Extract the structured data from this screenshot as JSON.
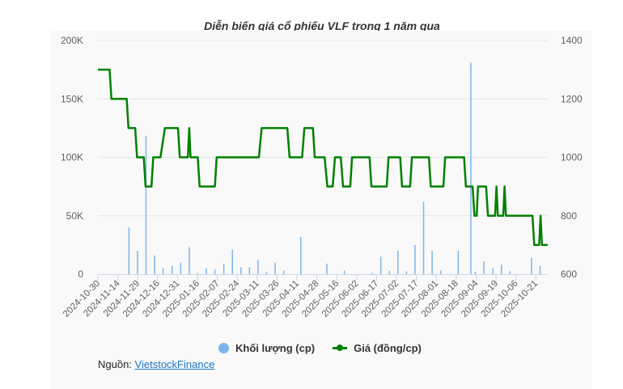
{
  "title": "Diễn biến giá cổ phiếu VLF trong 1 năm qua",
  "legend": {
    "volume_label": "Khối lượng (cp)",
    "price_label": "Giá (đồng/cp)"
  },
  "source": {
    "prefix": "Nguồn:",
    "link_text": "VietstockFinance"
  },
  "colors": {
    "volume": "#7cb5ec",
    "price": "#008000",
    "grid": "#e6e6e6",
    "panel_bg": "#f9f9f9"
  },
  "chart_data": {
    "type": "bar+line",
    "title": "Diễn biến giá cổ phiếu VLF trong 1 năm qua",
    "left_axis": {
      "label": "Khối lượng (cp)",
      "range": [
        0,
        200000
      ],
      "ticks": [
        "0",
        "50K",
        "100K",
        "150K",
        "200K"
      ]
    },
    "right_axis": {
      "label": "Giá (đồng/cp)",
      "range": [
        600,
        1400
      ],
      "ticks": [
        "600",
        "800",
        "1000",
        "1200",
        "1400"
      ]
    },
    "x_tick_labels": [
      "2024-10-30",
      "2024-11-14",
      "2024-11-29",
      "2024-12-16",
      "2024-12-31",
      "2025-01-16",
      "2025-02-07",
      "2025-02-24",
      "2025-03-11",
      "2025-03-26",
      "2025-04-11",
      "2025-04-28",
      "2025-05-16",
      "2025-06-02",
      "2025-06-17",
      "2025-07-02",
      "2025-07-17",
      "2025-08-01",
      "2025-08-18",
      "2025-09-04",
      "2025-09-19",
      "2025-10-06",
      "2025-10-21"
    ],
    "grid": true,
    "legend_position": "bottom",
    "series": [
      {
        "name": "Giá (đồng/cp)",
        "type": "line",
        "points_xfrac_price": [
          [
            0.0,
            1300
          ],
          [
            0.026,
            1300
          ],
          [
            0.03,
            1200
          ],
          [
            0.064,
            1200
          ],
          [
            0.068,
            1100
          ],
          [
            0.083,
            1100
          ],
          [
            0.087,
            1000
          ],
          [
            0.102,
            1000
          ],
          [
            0.106,
            900
          ],
          [
            0.119,
            900
          ],
          [
            0.123,
            1000
          ],
          [
            0.139,
            1000
          ],
          [
            0.149,
            1100
          ],
          [
            0.178,
            1100
          ],
          [
            0.182,
            1000
          ],
          [
            0.2,
            1000
          ],
          [
            0.203,
            1100
          ],
          [
            0.206,
            1000
          ],
          [
            0.222,
            1000
          ],
          [
            0.226,
            900
          ],
          [
            0.26,
            900
          ],
          [
            0.264,
            1000
          ],
          [
            0.358,
            1000
          ],
          [
            0.364,
            1100
          ],
          [
            0.421,
            1100
          ],
          [
            0.426,
            1000
          ],
          [
            0.454,
            1000
          ],
          [
            0.459,
            1100
          ],
          [
            0.478,
            1100
          ],
          [
            0.482,
            1000
          ],
          [
            0.504,
            1000
          ],
          [
            0.51,
            900
          ],
          [
            0.522,
            900
          ],
          [
            0.527,
            1000
          ],
          [
            0.54,
            1000
          ],
          [
            0.545,
            900
          ],
          [
            0.561,
            900
          ],
          [
            0.565,
            1000
          ],
          [
            0.604,
            1000
          ],
          [
            0.608,
            900
          ],
          [
            0.642,
            900
          ],
          [
            0.646,
            1000
          ],
          [
            0.672,
            1000
          ],
          [
            0.676,
            900
          ],
          [
            0.694,
            900
          ],
          [
            0.698,
            1000
          ],
          [
            0.736,
            1000
          ],
          [
            0.74,
            900
          ],
          [
            0.768,
            900
          ],
          [
            0.772,
            1000
          ],
          [
            0.814,
            1000
          ],
          [
            0.818,
            900
          ],
          [
            0.833,
            900
          ],
          [
            0.837,
            800
          ],
          [
            0.842,
            800
          ],
          [
            0.845,
            900
          ],
          [
            0.863,
            900
          ],
          [
            0.867,
            800
          ],
          [
            0.883,
            800
          ],
          [
            0.886,
            900
          ],
          [
            0.889,
            800
          ],
          [
            0.901,
            800
          ],
          [
            0.904,
            900
          ],
          [
            0.907,
            800
          ],
          [
            0.966,
            800
          ],
          [
            0.97,
            700
          ],
          [
            0.981,
            700
          ],
          [
            0.984,
            800
          ],
          [
            0.987,
            700
          ],
          [
            1.0,
            700
          ]
        ]
      },
      {
        "name": "Khối lượng (cp)",
        "type": "bar",
        "bars_xfrac_volume": [
          [
            0.069,
            40000
          ],
          [
            0.088,
            20000
          ],
          [
            0.107,
            118000
          ],
          [
            0.126,
            16000
          ],
          [
            0.145,
            5000
          ],
          [
            0.165,
            7000
          ],
          [
            0.184,
            10000
          ],
          [
            0.203,
            23000
          ],
          [
            0.222,
            1000
          ],
          [
            0.241,
            5000
          ],
          [
            0.26,
            4000
          ],
          [
            0.28,
            9000
          ],
          [
            0.299,
            21000
          ],
          [
            0.318,
            6000
          ],
          [
            0.337,
            6000
          ],
          [
            0.356,
            12000
          ],
          [
            0.375,
            2000
          ],
          [
            0.394,
            10000
          ],
          [
            0.413,
            3000
          ],
          [
            0.451,
            32000
          ],
          [
            0.509,
            9000
          ],
          [
            0.548,
            3000
          ],
          [
            0.61,
            1000
          ],
          [
            0.629,
            15000
          ],
          [
            0.648,
            3000
          ],
          [
            0.667,
            20000
          ],
          [
            0.686,
            2500
          ],
          [
            0.705,
            25000
          ],
          [
            0.724,
            62000
          ],
          [
            0.743,
            20000
          ],
          [
            0.762,
            3000
          ],
          [
            0.801,
            20000
          ],
          [
            0.829,
            181000
          ],
          [
            0.839,
            2000
          ],
          [
            0.858,
            11000
          ],
          [
            0.878,
            5000
          ],
          [
            0.897,
            8000
          ],
          [
            0.916,
            2500
          ],
          [
            0.964,
            14000
          ],
          [
            0.983,
            7000
          ]
        ]
      }
    ]
  }
}
